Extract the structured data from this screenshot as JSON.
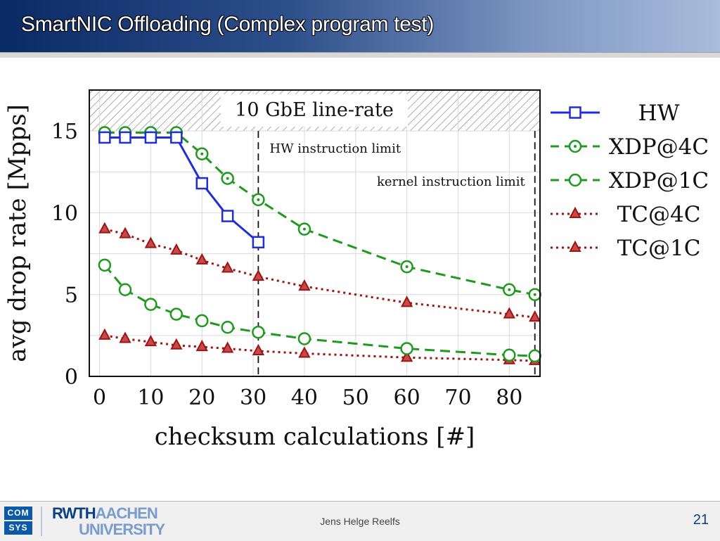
{
  "slide": {
    "title": "SmartNIC Offloading (Complex program test)",
    "author": "Jens Helge Reelfs",
    "page_number": "21"
  },
  "logos": {
    "comsys_line1": "COM",
    "comsys_line2": "SYS",
    "rwth_part1": "RWTH",
    "rwth_part2": "AACHEN",
    "rwth_part3": "UNIVERSITY"
  },
  "colors": {
    "title_text": "#ffffff",
    "accent": "#0b3f85",
    "hw": "#1f2ed6",
    "xdp": "#1f9a1f",
    "tc": "#9e1414"
  },
  "chart_data": {
    "type": "line",
    "title": "",
    "xlabel": "checksum calculations [#]",
    "ylabel": "avg drop rate [Mpps]",
    "xlim": [
      -2,
      86
    ],
    "ylim": [
      0,
      17.5
    ],
    "xticks": [
      0,
      10,
      20,
      30,
      40,
      50,
      60,
      70,
      80
    ],
    "yticks": [
      0,
      5,
      10,
      15
    ],
    "grid": true,
    "legend_position": "outside-right",
    "line_rate": 15,
    "line_rate_label": "10 GbE line-rate",
    "vlines": [
      {
        "x": 31,
        "label": "HW instruction limit"
      },
      {
        "x": 85,
        "label": "kernel instruction limit"
      }
    ],
    "series": [
      {
        "name": "HW",
        "color": "#1f2ed6",
        "dash": "solid",
        "marker": "square",
        "x": [
          1,
          5,
          10,
          15,
          20,
          25,
          31
        ],
        "y": [
          14.6,
          14.6,
          14.6,
          14.6,
          11.8,
          9.8,
          8.2
        ]
      },
      {
        "name": "XDP@4C",
        "color": "#1f9a1f",
        "dash": "dashed",
        "marker": "circle-dot",
        "x": [
          1,
          5,
          10,
          15,
          20,
          25,
          31,
          40,
          60,
          80,
          85
        ],
        "y": [
          14.9,
          14.9,
          14.9,
          14.9,
          13.6,
          12.1,
          10.8,
          9.0,
          6.7,
          5.3,
          5.0
        ]
      },
      {
        "name": "XDP@1C",
        "color": "#1f9a1f",
        "dash": "dashed",
        "marker": "circle",
        "x": [
          1,
          5,
          10,
          15,
          20,
          25,
          31,
          40,
          60,
          80,
          85
        ],
        "y": [
          6.8,
          5.3,
          4.4,
          3.8,
          3.4,
          3.0,
          2.7,
          2.3,
          1.7,
          1.3,
          1.25
        ]
      },
      {
        "name": "TC@4C",
        "color": "#9e1414",
        "dash": "dotted",
        "marker": "triangle",
        "x": [
          1,
          5,
          10,
          15,
          20,
          25,
          31,
          40,
          60,
          80,
          85
        ],
        "y": [
          9.0,
          8.7,
          8.1,
          7.7,
          7.1,
          6.6,
          6.1,
          5.5,
          4.5,
          3.8,
          3.6
        ]
      },
      {
        "name": "TC@1C",
        "color": "#9e1414",
        "dash": "dotted",
        "marker": "triangle",
        "x": [
          1,
          5,
          10,
          15,
          20,
          25,
          31,
          40,
          60,
          80,
          85
        ],
        "y": [
          2.5,
          2.3,
          2.1,
          1.9,
          1.8,
          1.7,
          1.55,
          1.4,
          1.15,
          1.0,
          0.95
        ]
      }
    ]
  }
}
